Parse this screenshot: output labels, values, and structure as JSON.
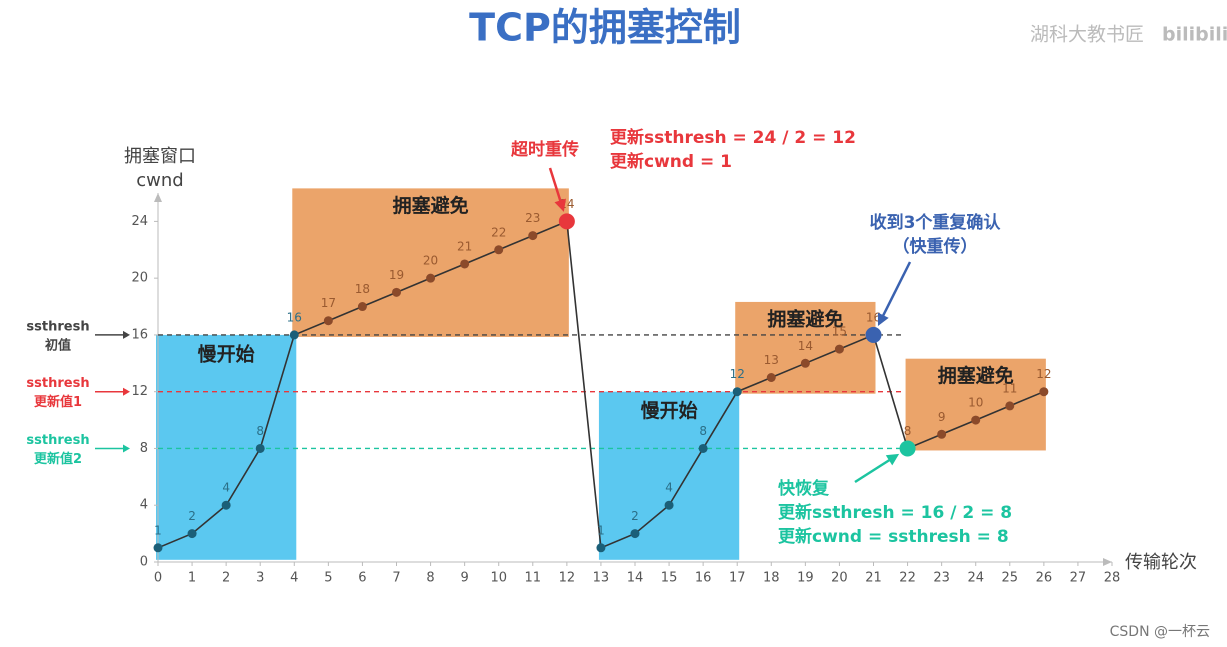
{
  "chart_data": {
    "type": "line",
    "title": "TCP的拥塞控制",
    "y_label": [
      "拥塞窗口",
      "cwnd"
    ],
    "x_label": "传输轮次",
    "x": [
      0,
      1,
      2,
      3,
      4,
      5,
      6,
      7,
      8,
      9,
      10,
      11,
      12,
      13,
      14,
      15,
      16,
      17,
      18,
      19,
      20,
      21,
      22,
      23,
      24,
      25,
      26
    ],
    "series": [
      {
        "name": "cwnd",
        "color": "#333333",
        "values": [
          1,
          2,
          4,
          8,
          16,
          17,
          18,
          19,
          20,
          21,
          22,
          23,
          24,
          1,
          2,
          4,
          8,
          12,
          13,
          14,
          15,
          16,
          8,
          9,
          10,
          11,
          12
        ]
      }
    ],
    "xlim": [
      0,
      28
    ],
    "xticks": [
      0,
      1,
      2,
      3,
      4,
      5,
      6,
      7,
      8,
      9,
      10,
      11,
      12,
      13,
      14,
      15,
      16,
      17,
      18,
      19,
      20,
      21,
      22,
      23,
      24,
      25,
      26,
      27,
      28
    ],
    "ylim": [
      0,
      26
    ],
    "yticks": [
      0,
      4,
      8,
      12,
      16,
      20,
      24
    ],
    "thresholds": [
      {
        "value": 16,
        "label": [
          "ssthresh",
          "初值"
        ],
        "color": "#444444"
      },
      {
        "value": 12,
        "label": [
          "ssthresh",
          "更新值1"
        ],
        "color": "#e8373c"
      },
      {
        "value": 8,
        "label": [
          "ssthresh",
          "更新值2"
        ],
        "color": "#1cc4a0"
      }
    ],
    "phases": [
      {
        "label": "慢开始",
        "x": [
          0,
          4
        ],
        "color": "#5bc8f0"
      },
      {
        "label": "拥塞避免",
        "x": [
          4,
          12
        ],
        "color": "#eba46a"
      },
      {
        "label": "慢开始",
        "x": [
          13,
          17
        ],
        "color": "#5bc8f0"
      },
      {
        "label": "拥塞避免",
        "x": [
          17,
          21
        ],
        "color": "#eba46a"
      },
      {
        "label": "拥塞避免",
        "x": [
          22,
          26
        ],
        "color": "#eba46a"
      }
    ],
    "annotations": [
      {
        "point": 12,
        "color": "#e8373c",
        "text": [
          "超时重传"
        ]
      },
      {
        "point": 12,
        "color": "#e8373c",
        "text": [
          "更新ssthresh = 24 / 2 = 12",
          "更新cwnd = 1"
        ]
      },
      {
        "point": 21,
        "color": "#3a62b0",
        "text": [
          "收到3个重复确认",
          "（快重传）"
        ]
      },
      {
        "point": 22,
        "color": "#1cc4a0",
        "text": [
          "快恢复",
          "更新ssthresh = 16 / 2 = 8",
          "更新cwnd = ssthresh = 8"
        ]
      }
    ]
  },
  "watermark": "湖科大教书匠",
  "logo": "bilibili",
  "credit": "CSDN @一杯云"
}
